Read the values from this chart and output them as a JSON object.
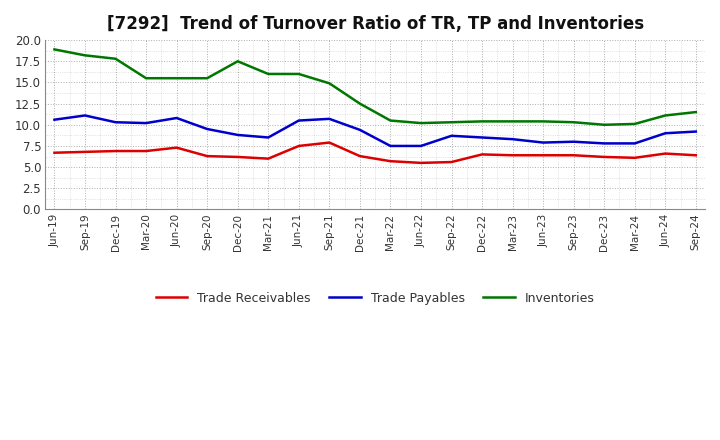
{
  "title": "[7292]  Trend of Turnover Ratio of TR, TP and Inventories",
  "labels": [
    "Jun-19",
    "Sep-19",
    "Dec-19",
    "Mar-20",
    "Jun-20",
    "Sep-20",
    "Dec-20",
    "Mar-21",
    "Jun-21",
    "Sep-21",
    "Dec-21",
    "Mar-22",
    "Jun-22",
    "Sep-22",
    "Dec-22",
    "Mar-23",
    "Jun-23",
    "Sep-23",
    "Dec-23",
    "Mar-24",
    "Jun-24",
    "Sep-24"
  ],
  "trade_receivables": [
    6.7,
    6.8,
    6.9,
    6.9,
    7.3,
    6.3,
    6.2,
    6.0,
    7.5,
    7.9,
    6.3,
    5.7,
    5.5,
    5.6,
    6.5,
    6.4,
    6.4,
    6.4,
    6.2,
    6.1,
    6.6,
    6.4
  ],
  "trade_payables": [
    10.6,
    11.1,
    10.3,
    10.2,
    10.8,
    9.5,
    8.8,
    8.5,
    10.5,
    10.7,
    9.4,
    7.5,
    7.5,
    8.7,
    8.5,
    8.3,
    7.9,
    8.0,
    7.8,
    7.8,
    9.0,
    9.2
  ],
  "inventories": [
    18.9,
    18.2,
    17.8,
    15.5,
    15.5,
    15.5,
    17.5,
    16.0,
    16.0,
    14.9,
    12.5,
    10.5,
    10.2,
    10.3,
    10.4,
    10.4,
    10.4,
    10.3,
    10.0,
    10.1,
    11.1,
    11.5
  ],
  "tr_color": "#dd0000",
  "tp_color": "#0000cc",
  "inv_color": "#007700",
  "ylim": [
    0.0,
    20.0
  ],
  "yticks": [
    0.0,
    2.5,
    5.0,
    7.5,
    10.0,
    12.5,
    15.0,
    17.5,
    20.0
  ],
  "bg_color": "#ffffff",
  "plot_bg_color": "#ffffff",
  "grid_color": "#999999",
  "legend_labels": [
    "Trade Receivables",
    "Trade Payables",
    "Inventories"
  ],
  "linewidth": 1.8,
  "title_fontsize": 12
}
